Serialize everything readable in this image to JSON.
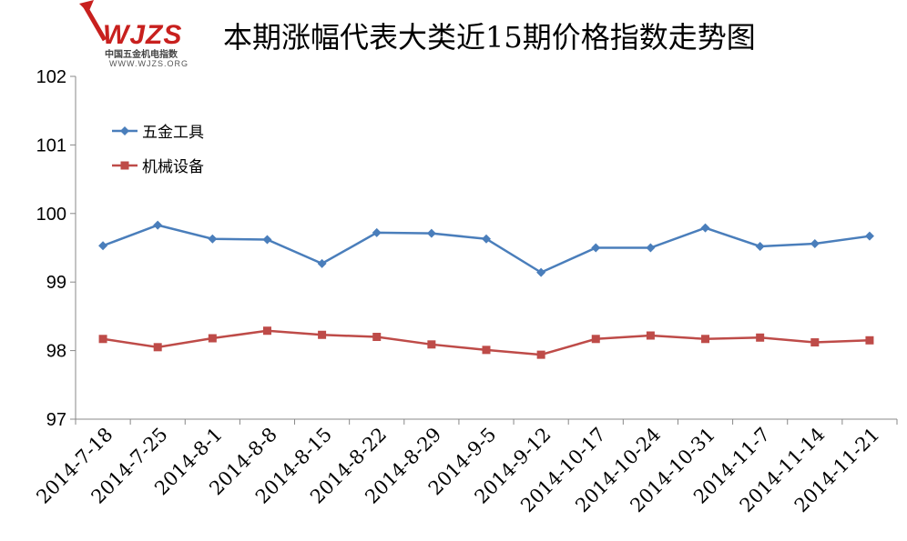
{
  "logo": {
    "mark": "WJZS",
    "name": "中国五金机电指数",
    "url": "WWW.WJZS.ORG"
  },
  "chart_data": {
    "type": "line",
    "title": "本期涨幅代表大类近15期价格指数走势图",
    "xlabel": "",
    "ylabel": "",
    "ylim": [
      97,
      102
    ],
    "yticks": [
      97,
      98,
      99,
      100,
      101,
      102
    ],
    "grid": false,
    "legend_placement": "top-left",
    "categories": [
      "2014-7-18",
      "2014-7-25",
      "2014-8-1",
      "2014-8-8",
      "2014-8-15",
      "2014-8-22",
      "2014-8-29",
      "2014-9-5",
      "2014-9-12",
      "2014-10-17",
      "2014-10-24",
      "2014-10-31",
      "2014-11-7",
      "2014-11-14",
      "2014-11-21"
    ],
    "series": [
      {
        "name": "五金工具",
        "color": "#4a7ebb",
        "marker": "diamond",
        "values": [
          99.53,
          99.83,
          99.63,
          99.62,
          99.27,
          99.72,
          99.71,
          99.63,
          99.14,
          99.5,
          99.5,
          99.79,
          99.52,
          99.56,
          99.67
        ]
      },
      {
        "name": "机械设备",
        "color": "#be4b48",
        "marker": "square",
        "values": [
          98.17,
          98.05,
          98.18,
          98.29,
          98.23,
          98.2,
          98.09,
          98.01,
          97.94,
          98.17,
          98.22,
          98.17,
          98.19,
          98.12,
          98.15
        ]
      }
    ]
  }
}
